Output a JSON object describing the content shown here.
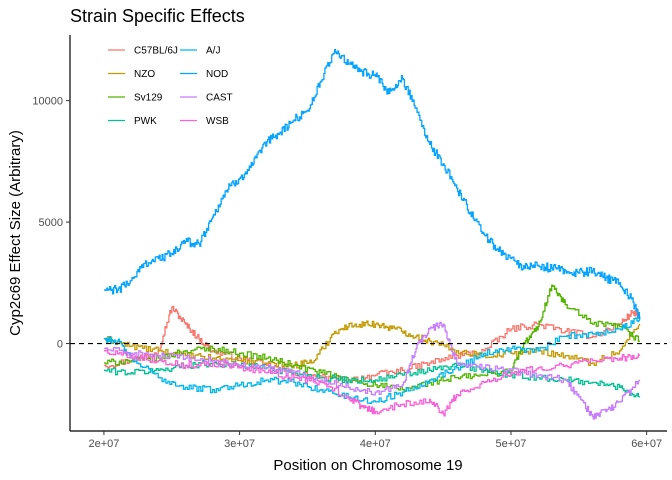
{
  "chart_data": {
    "type": "line",
    "title": "Strain Specific Effects",
    "xlabel": "Position on Chromosome 19",
    "ylabel": "Cyp2c69 Effect Size (Arbitrary)",
    "xlim": [
      17500000,
      61500000
    ],
    "ylim": [
      -3600,
      12700
    ],
    "x_ticks": [
      20000000,
      30000000,
      40000000,
      50000000,
      60000000
    ],
    "x_tick_labels": [
      "2e+07",
      "3e+07",
      "4e+07",
      "5e+07",
      "6e+07"
    ],
    "y_ticks": [
      0,
      5000,
      10000
    ],
    "y_tick_labels": [
      "0",
      "5000",
      "10000"
    ],
    "reference_line": {
      "y": 0,
      "style": "dashed"
    },
    "grid": false,
    "legend_position": "top-left",
    "series": [
      {
        "name": "C57BL/6J",
        "color": "#F8766D",
        "x": [
          20000000,
          22000000,
          24000000,
          25000000,
          26000000,
          27000000,
          28000000,
          30000000,
          32000000,
          34000000,
          36000000,
          38000000,
          40000000,
          42000000,
          44000000,
          46000000,
          48000000,
          50000000,
          52000000,
          54000000,
          56000000,
          58000000,
          59000000,
          59500000
        ],
        "values": [
          -900,
          -700,
          -300,
          1500,
          800,
          200,
          -300,
          -600,
          -900,
          -1200,
          -1400,
          -1500,
          -1300,
          -1100,
          -800,
          -500,
          -300,
          600,
          800,
          500,
          300,
          800,
          1300,
          1100
        ]
      },
      {
        "name": "NZO",
        "color": "#C49A00",
        "x": [
          20000000,
          22000000,
          24000000,
          26000000,
          28000000,
          30000000,
          32000000,
          34000000,
          35500000,
          37000000,
          38500000,
          40000000,
          41500000,
          43000000,
          44000000,
          46000000,
          48000000,
          50000000,
          52000000,
          54000000,
          56000000,
          58000000,
          59500000
        ],
        "values": [
          200,
          -100,
          -300,
          -500,
          -600,
          -700,
          -800,
          -900,
          -700,
          500,
          800,
          800,
          600,
          300,
          100,
          -300,
          -500,
          -400,
          -300,
          -500,
          -800,
          -300,
          800
        ]
      },
      {
        "name": "Sv129",
        "color": "#53B400",
        "x": [
          20000000,
          22000000,
          24000000,
          26000000,
          28000000,
          30000000,
          32000000,
          34000000,
          36000000,
          38000000,
          40000000,
          42000000,
          44000000,
          46000000,
          48000000,
          50000000,
          51000000,
          52000000,
          53000000,
          54000000,
          56000000,
          58000000,
          59500000
        ],
        "values": [
          -800,
          -700,
          -600,
          -300,
          -200,
          -400,
          -600,
          -900,
          -1200,
          -1500,
          -1700,
          -1900,
          -1600,
          -1400,
          -1300,
          -1100,
          0,
          700,
          2400,
          1600,
          800,
          700,
          100
        ]
      },
      {
        "name": "PWK",
        "color": "#00C094",
        "x": [
          20000000,
          22000000,
          24000000,
          26000000,
          28000000,
          30000000,
          32000000,
          34000000,
          36000000,
          38000000,
          40000000,
          42000000,
          44000000,
          46000000,
          48000000,
          50000000,
          52000000,
          54000000,
          56000000,
          58000000,
          59500000
        ],
        "values": [
          -1100,
          -1200,
          -1100,
          -900,
          -800,
          -900,
          -1000,
          -1200,
          -1400,
          -1500,
          -1500,
          -1300,
          -1100,
          -900,
          -1100,
          -1300,
          -1400,
          -1500,
          -1600,
          -1800,
          -2200
        ]
      },
      {
        "name": "A/J",
        "color": "#00B6EB",
        "x": [
          20000000,
          21000000,
          22000000,
          24000000,
          26000000,
          28000000,
          30000000,
          32000000,
          34000000,
          36000000,
          38000000,
          40000000,
          42000000,
          44000000,
          46000000,
          48000000,
          50000000,
          52000000,
          54000000,
          56000000,
          58000000,
          59500000
        ],
        "values": [
          200,
          100,
          -600,
          -1400,
          -1800,
          -1900,
          -1700,
          -1500,
          -1600,
          -1900,
          -2200,
          -2400,
          -2000,
          -1500,
          -1000,
          -400,
          -200,
          -300,
          300,
          400,
          600,
          1000
        ]
      },
      {
        "name": "NOD",
        "color": "#06A4FF",
        "x": [
          20000000,
          21000000,
          22000000,
          23000000,
          24000000,
          25000000,
          26000000,
          27000000,
          28000000,
          29000000,
          30000000,
          31000000,
          32000000,
          33000000,
          34000000,
          35000000,
          36000000,
          37000000,
          38000000,
          39000000,
          40000000,
          41000000,
          42000000,
          43000000,
          44000000,
          45000000,
          46000000,
          47000000,
          48000000,
          49000000,
          50000000,
          51000000,
          52000000,
          53000000,
          54000000,
          55000000,
          56000000,
          57000000,
          58000000,
          59000000,
          59500000
        ],
        "values": [
          2200,
          2200,
          2600,
          3300,
          3500,
          3700,
          4200,
          4100,
          5200,
          6300,
          6800,
          7400,
          8300,
          8700,
          9200,
          9600,
          10800,
          12100,
          11500,
          11200,
          11000,
          10300,
          10900,
          9700,
          8200,
          7400,
          6400,
          5400,
          4500,
          3900,
          3500,
          3100,
          3200,
          3100,
          3000,
          2900,
          3000,
          2700,
          2500,
          1700,
          1000
        ]
      },
      {
        "name": "CAST",
        "color": "#C77CFF",
        "x": [
          20000000,
          22000000,
          24000000,
          26000000,
          28000000,
          30000000,
          32000000,
          34000000,
          36000000,
          38000000,
          40000000,
          42000000,
          43000000,
          44000000,
          45000000,
          46000000,
          48000000,
          50000000,
          52000000,
          54000000,
          55000000,
          56000000,
          57000000,
          58000000,
          59500000
        ],
        "values": [
          -200,
          -400,
          -500,
          -600,
          -700,
          -900,
          -1000,
          -1200,
          -1500,
          -1800,
          -2000,
          -1700,
          -200,
          600,
          800,
          -800,
          -1000,
          -1100,
          -1300,
          -1500,
          -2200,
          -3000,
          -2800,
          -2400,
          -1500
        ]
      },
      {
        "name": "WSB",
        "color": "#FB61D7",
        "x": [
          20000000,
          22000000,
          24000000,
          26000000,
          28000000,
          30000000,
          32000000,
          34000000,
          36000000,
          38000000,
          39000000,
          40000000,
          42000000,
          44000000,
          45000000,
          46000000,
          48000000,
          50000000,
          52000000,
          54000000,
          56000000,
          58000000,
          59500000
        ],
        "values": [
          -300,
          -500,
          -700,
          -900,
          -800,
          -1000,
          -1200,
          -1400,
          -1600,
          -2200,
          -2600,
          -2800,
          -2500,
          -2300,
          -2900,
          -2100,
          -1600,
          -1200,
          -1000,
          -900,
          -700,
          -600,
          -500
        ]
      }
    ]
  }
}
